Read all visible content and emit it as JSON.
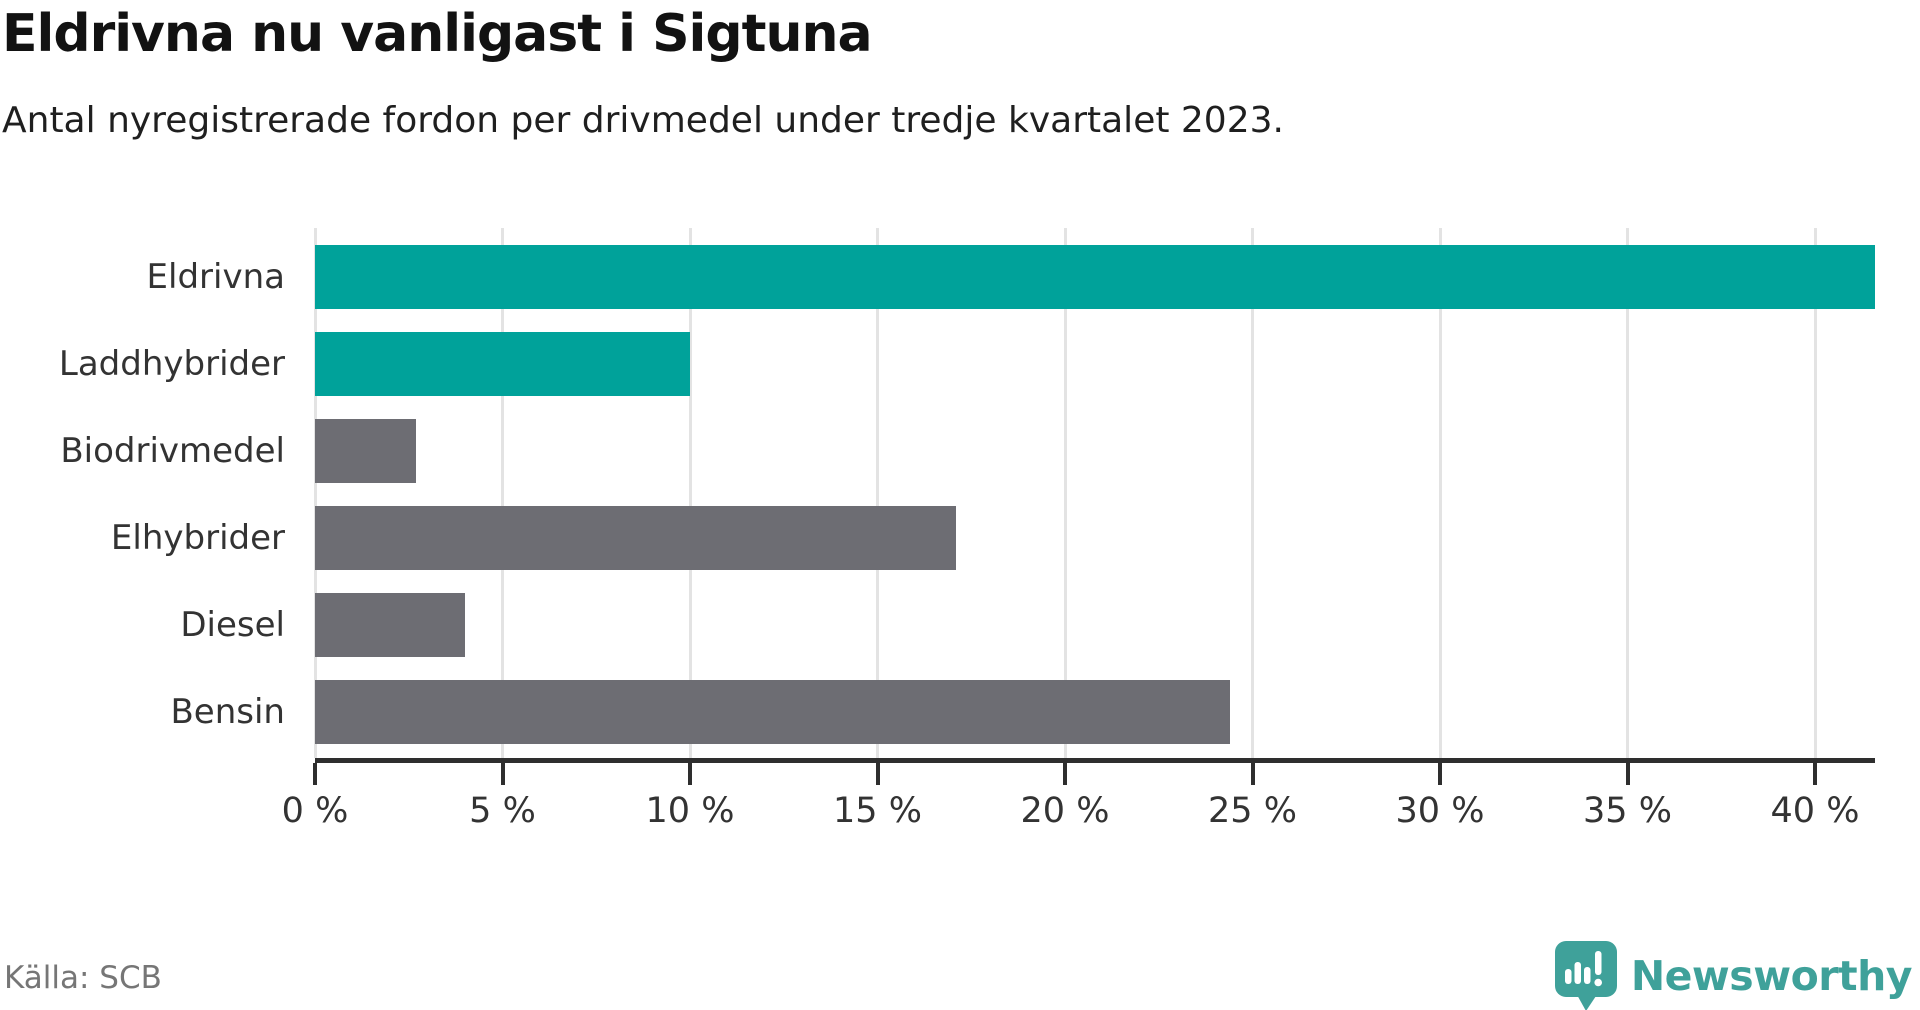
{
  "title": "Eldrivna nu vanligast i Sigtuna",
  "subtitle": "Antal nyregistrerade fordon per drivmedel under tredje kvartalet 2023.",
  "source": "Källa: SCB",
  "branding": {
    "name": "Newsworthy",
    "icon": "newsworthy-speech-bubble-bar-chart-icon",
    "color": "#3FA19A"
  },
  "colors": {
    "highlight_bar": "#00A29A",
    "default_bar": "#6D6D73",
    "gridline": "#E3E3E3",
    "axis": "#2E2E2E",
    "title_text": "#121212",
    "body_text": "#333333",
    "source_text": "#767676",
    "background": "#FFFFFF"
  },
  "chart_data": {
    "type": "bar",
    "orientation": "horizontal",
    "title": "Eldrivna nu vanligast i Sigtuna",
    "subtitle": "Antal nyregistrerade fordon per drivmedel under tredje kvartalet 2023.",
    "source": "Källa: SCB",
    "categories": [
      "Eldrivna",
      "Laddhybrider",
      "Biodrivmedel",
      "Elhybrider",
      "Diesel",
      "Bensin"
    ],
    "values": [
      41.6,
      10.0,
      2.7,
      17.1,
      4.0,
      24.4
    ],
    "unit": "%",
    "bar_colors": [
      "#00A29A",
      "#00A29A",
      "#6D6D73",
      "#6D6D73",
      "#6D6D73",
      "#6D6D73"
    ],
    "xlabel": "",
    "ylabel": "",
    "xlim": [
      0,
      41.6
    ],
    "xticks": [
      0,
      5,
      10,
      15,
      20,
      25,
      30,
      35,
      40
    ],
    "xtick_labels": [
      "0 %",
      "5 %",
      "10 %",
      "15 %",
      "20 %",
      "25 %",
      "30 %",
      "35 %",
      "40 %"
    ],
    "grid": "vertical-gridlines",
    "legend": "none"
  }
}
